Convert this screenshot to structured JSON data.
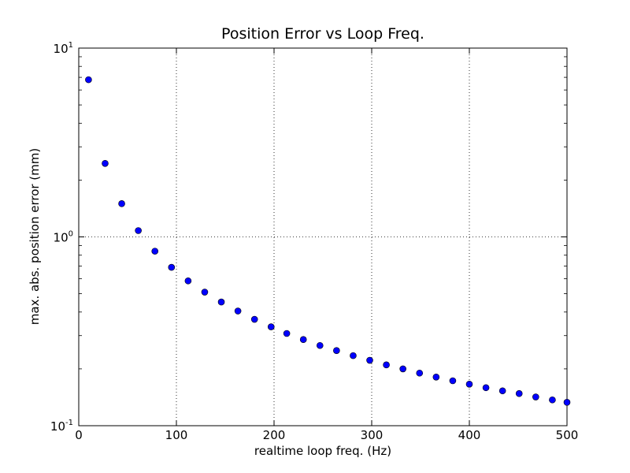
{
  "chart_data": {
    "type": "scatter",
    "title": "Position Error vs Loop Freq.",
    "xlabel": "realtime loop freq. (Hz)",
    "ylabel": "max. abs. position error (mm)",
    "xlim": [
      0,
      500
    ],
    "ylim": [
      0.1,
      10
    ],
    "y_scale": "log",
    "grid": true,
    "x_ticks": [
      "0",
      "100",
      "200",
      "300",
      "400",
      "500"
    ],
    "y_ticks": [
      {
        "base": "10",
        "exp": "-1"
      },
      {
        "base": "10",
        "exp": "0"
      },
      {
        "base": "10",
        "exp": "1"
      }
    ],
    "series": [
      {
        "color": "#0000ff",
        "x": [
          10,
          27,
          44,
          61,
          78,
          95,
          112,
          129,
          146,
          163,
          180,
          197,
          213,
          230,
          247,
          264,
          281,
          298,
          315,
          332,
          349,
          366,
          383,
          400,
          417,
          434,
          451,
          468,
          485,
          500
        ],
        "y": [
          6.8,
          2.45,
          1.5,
          1.08,
          0.84,
          0.69,
          0.585,
          0.51,
          0.452,
          0.405,
          0.366,
          0.334,
          0.308,
          0.286,
          0.266,
          0.25,
          0.235,
          0.222,
          0.21,
          0.2,
          0.19,
          0.181,
          0.173,
          0.166,
          0.159,
          0.153,
          0.148,
          0.142,
          0.137,
          0.133
        ]
      }
    ]
  }
}
